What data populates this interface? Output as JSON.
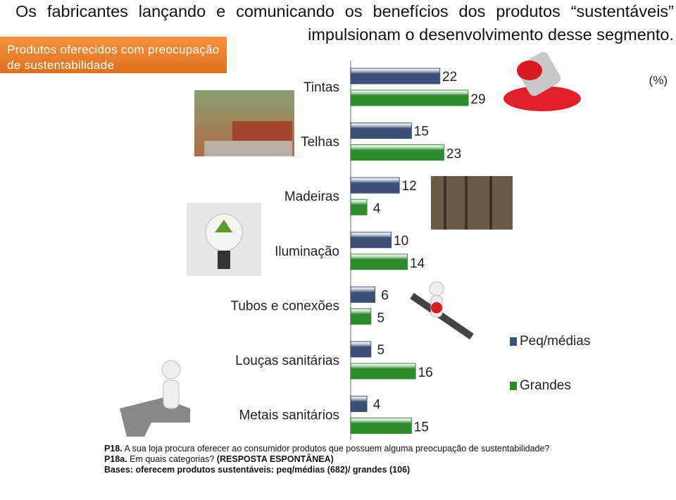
{
  "title": "Os fabricantes lançando e comunicando os benefícios dos produtos “sustentáveis” impulsionam o desenvolvimento desse segmento.",
  "badge": "Produtos oferecidos com preocupação de sustentabilidade",
  "chart_data": {
    "type": "bar",
    "orientation": "horizontal",
    "unit_label": "(%)",
    "categories": [
      "Tintas",
      "Telhas",
      "Madeiras",
      "Iluminação",
      "Tubos e conexões",
      "Louças sanitárias",
      "Metais sanitários"
    ],
    "series": [
      {
        "name": "Peq/médias",
        "color": "#3b5075",
        "values": [
          22,
          15,
          12,
          10,
          6,
          5,
          4
        ]
      },
      {
        "name": "Grandes",
        "color": "#2d8a2d",
        "values": [
          29,
          23,
          4,
          14,
          5,
          16,
          15
        ]
      }
    ]
  },
  "footnote": {
    "q1_code": "P18.",
    "q1_text": "A sua loja procura oferecer ao consumidor produtos que possuem alguma preocupação de sustentabilidade?",
    "q2_code": "P18a.",
    "q2_text": "Em quais categorias?",
    "q2_note": "(RESPOSTA ESPONTÂNEA)",
    "bases": "Bases: oferecem produtos sustentáveis: peq/médias (682)/ grandes (106)"
  }
}
